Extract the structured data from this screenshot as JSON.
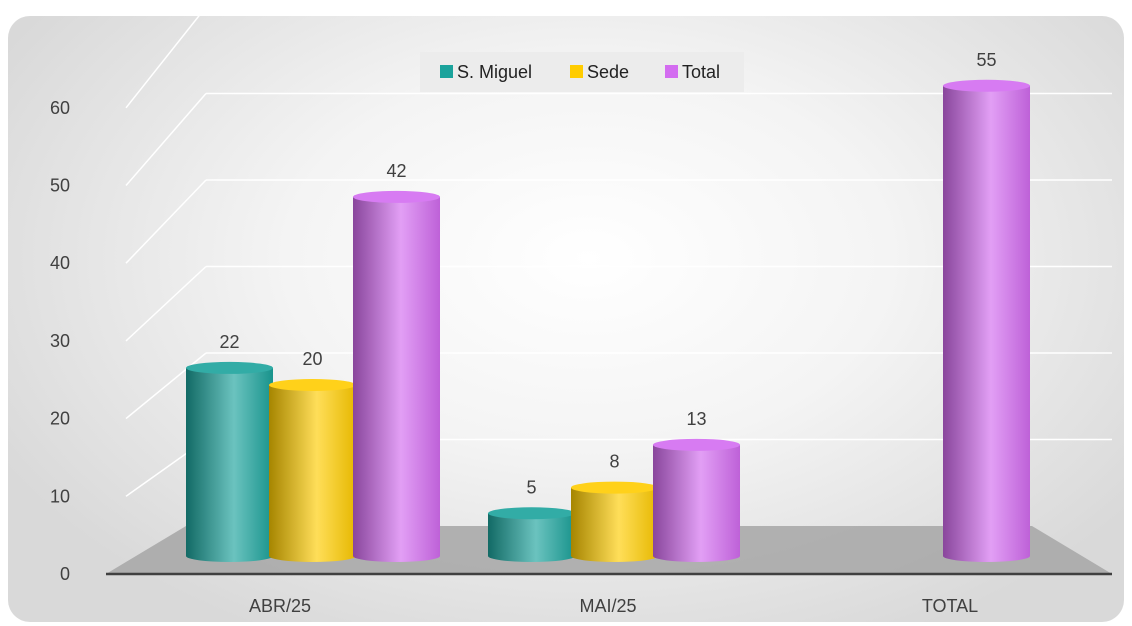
{
  "chart_data": {
    "type": "bar",
    "categories": [
      "ABR/25",
      "MAI/25",
      "TOTAL"
    ],
    "series": [
      {
        "name": "S. Miguel",
        "color": "#1BA39C",
        "values": [
          22,
          5,
          null
        ]
      },
      {
        "name": "Sede",
        "color": "#FFCC00",
        "values": [
          20,
          8,
          null
        ]
      },
      {
        "name": "Total",
        "color": "#D36CF0",
        "values": [
          42,
          13,
          55
        ]
      }
    ],
    "ylim": [
      0,
      60
    ],
    "yticks": [
      0,
      10,
      20,
      30,
      40,
      50,
      60
    ],
    "ytick_labels": [
      "0",
      "10",
      "20",
      "30",
      "40",
      "50",
      "60"
    ],
    "data_labels": [
      [
        "22",
        "5",
        ""
      ],
      [
        "20",
        "8",
        ""
      ],
      [
        "42",
        "13",
        "55"
      ]
    ],
    "grid": true,
    "legend_position": "top-center",
    "style": "3d-cylinder"
  }
}
